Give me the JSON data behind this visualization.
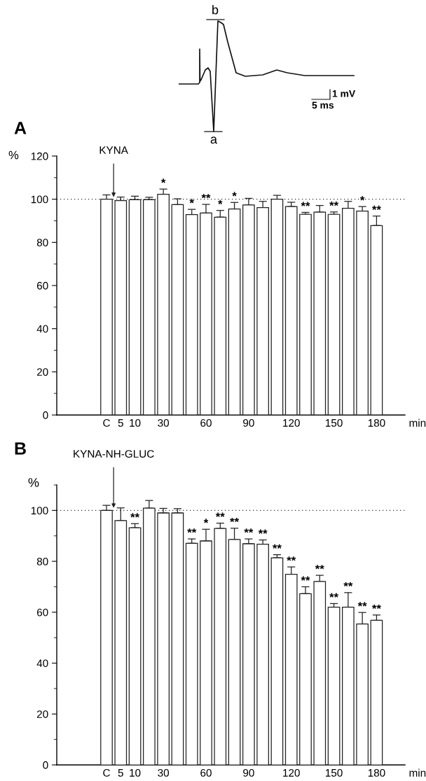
{
  "chart_data": [
    {
      "type": "bar",
      "title": "A",
      "xlabel": "min",
      "ylabel": "%",
      "annotations": [
        {
          "text": "KYNA",
          "y": 101
        },
        "b",
        "a",
        "1 mV",
        "5 ms"
      ],
      "categories": [
        "C",
        "5",
        "10",
        null,
        "30",
        null,
        null,
        "60",
        null,
        null,
        "90",
        null,
        null,
        "120",
        null,
        null,
        "150",
        null,
        null,
        "180"
      ],
      "values": [
        100,
        99.4,
        99.8,
        99.8,
        102.3,
        97.5,
        92.9,
        93.6,
        91.7,
        95.5,
        97.3,
        96.1,
        100,
        96.6,
        93,
        94,
        93,
        95.8,
        94.5,
        87.8
      ],
      "errors": [
        [
          100,
          102
        ],
        [
          99.4,
          101
        ],
        [
          99.8,
          101.4
        ],
        [
          99.8,
          100.9
        ],
        [
          102.3,
          104.7
        ],
        [
          97.5,
          100.2
        ],
        [
          92.9,
          95.3
        ],
        [
          93.6,
          97.6
        ],
        [
          91.7,
          94.8
        ],
        [
          95.5,
          98.5
        ],
        [
          97.3,
          100.4
        ],
        [
          96.1,
          99
        ],
        [
          100,
          101.8
        ],
        [
          96.6,
          98.6
        ],
        [
          93,
          93.9
        ],
        [
          94,
          97.1
        ],
        [
          93,
          94.1
        ],
        [
          95.8,
          99
        ],
        [
          94.5,
          96.6
        ],
        [
          87.8,
          92.2
        ]
      ],
      "value_labels": [
        null,
        null,
        null,
        null,
        "*",
        null,
        "*",
        "**",
        "*",
        "*",
        null,
        null,
        null,
        null,
        "**",
        null,
        "**",
        null,
        "*",
        "**"
      ],
      "color": "#ffffff",
      "ylim": [
        0,
        120
      ],
      "yticks": [
        0,
        20,
        40,
        60,
        80,
        100,
        120
      ],
      "ref_lines": [
        {
          "axis": "y",
          "value": 100,
          "label": null,
          "line_style": "dotted",
          "color": "#333333"
        }
      ],
      "grid": false
    },
    {
      "type": "bar",
      "title": "B",
      "xlabel": "min",
      "ylabel": "%",
      "annotations": [
        {
          "text": "KYNA-NH-GLUC",
          "y": 101
        }
      ],
      "categories": [
        "C",
        "5",
        "10",
        null,
        "30",
        null,
        null,
        "60",
        null,
        null,
        "90",
        null,
        null,
        "120",
        null,
        null,
        "150",
        null,
        null,
        "180"
      ],
      "values": [
        100,
        96,
        93.2,
        100.9,
        99,
        99,
        87.1,
        88,
        92.9,
        88.6,
        86.9,
        86.7,
        81.4,
        74.9,
        67.3,
        72.1,
        62,
        62,
        55.4,
        56.8
      ],
      "errors": [
        [
          100,
          102
        ],
        [
          96,
          101
        ],
        [
          93.2,
          94.8
        ],
        [
          100.9,
          103.9
        ],
        [
          99,
          100.8
        ],
        [
          99,
          100.7
        ],
        [
          87.1,
          88.8
        ],
        [
          88,
          92.6
        ],
        [
          92.9,
          95
        ],
        [
          88.6,
          93
        ],
        [
          86.9,
          88.8
        ],
        [
          86.7,
          88.4
        ],
        [
          81.4,
          82.6
        ],
        [
          74.9,
          77.8
        ],
        [
          67.3,
          70
        ],
        [
          72.1,
          74.5
        ],
        [
          62,
          63.4
        ],
        [
          62,
          67.7
        ],
        [
          55.4,
          59.9
        ],
        [
          56.8,
          58.9
        ]
      ],
      "value_labels": [
        null,
        null,
        "**",
        null,
        null,
        null,
        "**",
        "*",
        "**",
        "**",
        "**",
        "**",
        "**",
        "**",
        "**",
        "**",
        "**",
        "**",
        "**",
        "**"
      ],
      "color": "#ffffff",
      "ylim": [
        0,
        110
      ],
      "yticks": [
        0,
        20,
        40,
        60,
        80,
        100
      ],
      "ref_lines": [
        {
          "axis": "y",
          "value": 100,
          "label": null,
          "line_style": "dotted",
          "color": "#333333"
        }
      ],
      "grid": false
    }
  ]
}
